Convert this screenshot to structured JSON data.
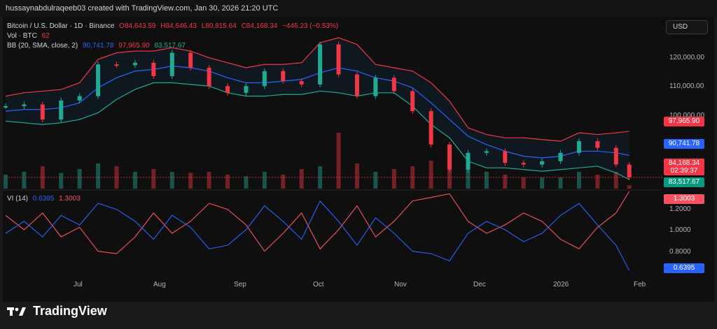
{
  "header": {
    "credit": "hussaynabdulraqeeb03 created with TradingView.com, Jan 30, 2026 21:20 UTC"
  },
  "toolbar": {
    "currency": "USD"
  },
  "legend": {
    "symbol": "Bitcoin / U.S. Dollar · 1D · Binance",
    "open": "O84,643.59",
    "high": "H84,646.43",
    "low": "L80,815.64",
    "close": "C84,168.34",
    "change": "−446.23 (−0.53%)",
    "vol_label": "Vol · BTC",
    "vol_value": "62",
    "bb_label": "BB (20, SMA, close, 2)",
    "bb_basis": "90,741.78",
    "bb_upper": "97,965.90",
    "bb_lower": "83,517.67",
    "vi_label": "VI (14)",
    "vi_plus": "0.6395",
    "vi_minus": "1.3003"
  },
  "price_tags": {
    "upper": "97,965.90",
    "basis": "90,741.78",
    "last": "84,168.34",
    "countdown": "02:39:37",
    "lower": "83,517.67",
    "vi_minus": "1.3003",
    "vi_plus": "0.6395"
  },
  "colors": {
    "up": "#22ab94",
    "down": "#f23645",
    "basis": "#2962ff",
    "band": "#f23645",
    "lower_band": "#22ab94",
    "vi_plus": "#2962ff",
    "vi_minus": "#f7525f"
  },
  "brand": {
    "name": "TradingView"
  },
  "chart_data": {
    "type": "line",
    "title": "Bitcoin / U.S. Dollar · 1D · Binance",
    "price_axis": {
      "ticks": [
        "120,000.00",
        "110,000.00",
        "100,000.00"
      ],
      "ylim": [
        81000,
        126000
      ]
    },
    "vi_axis": {
      "ticks": [
        "1.2000",
        "1.0000",
        "0.8000"
      ],
      "ylim": [
        0.6,
        1.3
      ]
    },
    "x_ticks": [
      "Jul",
      "Aug",
      "Sep",
      "Oct",
      "Nov",
      "Dec",
      "2026",
      "Feb"
    ],
    "x_range": [
      "2025-06-08",
      "2026-02-02"
    ],
    "price_series": [
      {
        "date": "2025-06-08",
        "close": 105500
      },
      {
        "date": "2025-06-15",
        "close": 106000
      },
      {
        "date": "2025-06-22",
        "close": 101500
      },
      {
        "date": "2025-06-29",
        "close": 107200
      },
      {
        "date": "2025-07-06",
        "close": 108500
      },
      {
        "date": "2025-07-13",
        "close": 118000
      },
      {
        "date": "2025-07-20",
        "close": 117800
      },
      {
        "date": "2025-07-27",
        "close": 118500
      },
      {
        "date": "2025-08-03",
        "close": 114500
      },
      {
        "date": "2025-08-10",
        "close": 121500
      },
      {
        "date": "2025-08-17",
        "close": 117000
      },
      {
        "date": "2025-08-24",
        "close": 111500
      },
      {
        "date": "2025-08-31",
        "close": 109500
      },
      {
        "date": "2025-09-07",
        "close": 111500
      },
      {
        "date": "2025-09-14",
        "close": 116000
      },
      {
        "date": "2025-09-21",
        "close": 113000
      },
      {
        "date": "2025-09-28",
        "close": 112000
      },
      {
        "date": "2025-10-05",
        "close": 124000
      },
      {
        "date": "2025-10-12",
        "close": 115000
      },
      {
        "date": "2025-10-19",
        "close": 108500
      },
      {
        "date": "2025-10-26",
        "close": 114000
      },
      {
        "date": "2025-11-02",
        "close": 110000
      },
      {
        "date": "2025-11-09",
        "close": 104000
      },
      {
        "date": "2025-11-16",
        "close": 94000
      },
      {
        "date": "2025-11-23",
        "close": 86500
      },
      {
        "date": "2025-11-30",
        "close": 91500
      },
      {
        "date": "2025-12-07",
        "close": 92000
      },
      {
        "date": "2025-12-14",
        "close": 88500
      },
      {
        "date": "2025-12-21",
        "close": 88000
      },
      {
        "date": "2025-12-28",
        "close": 89000
      },
      {
        "date": "2026-01-04",
        "close": 91500
      },
      {
        "date": "2026-01-11",
        "close": 95000
      },
      {
        "date": "2026-01-18",
        "close": 93000
      },
      {
        "date": "2026-01-25",
        "close": 88000
      },
      {
        "date": "2026-01-30",
        "close": 84168
      }
    ],
    "bollinger_upper": [
      108500,
      109500,
      110000,
      110500,
      112500,
      119500,
      121500,
      122000,
      122000,
      123000,
      122000,
      120000,
      118500,
      117000,
      118000,
      118000,
      118500,
      124500,
      126000,
      124000,
      118000,
      117000,
      116000,
      112500,
      107000,
      99000,
      97000,
      96000,
      96000,
      95500,
      95000,
      97500,
      97000,
      97500,
      97966
    ],
    "bollinger_basis": [
      104000,
      104500,
      104500,
      105000,
      106500,
      111000,
      114000,
      116000,
      116500,
      117500,
      117000,
      116000,
      114000,
      112500,
      112500,
      113000,
      113500,
      115500,
      117000,
      116000,
      114000,
      113000,
      111000,
      106500,
      101500,
      96500,
      94000,
      92000,
      90500,
      90000,
      90500,
      92000,
      92000,
      91500,
      90742
    ],
    "bollinger_lower": [
      101000,
      100500,
      100000,
      100500,
      101500,
      103500,
      107500,
      110500,
      112500,
      112500,
      112000,
      111500,
      109500,
      108500,
      108500,
      109000,
      109000,
      110000,
      109500,
      108500,
      109500,
      109500,
      105500,
      100000,
      96000,
      89000,
      87000,
      87000,
      86500,
      86000,
      86500,
      87000,
      87500,
      85500,
      83518
    ],
    "volume_relative": [
      0.25,
      0.3,
      0.4,
      0.28,
      0.35,
      0.45,
      0.4,
      0.3,
      0.35,
      0.3,
      0.28,
      0.3,
      0.25,
      0.22,
      0.3,
      0.25,
      0.35,
      0.4,
      1.0,
      0.45,
      0.3,
      0.35,
      0.4,
      0.5,
      0.7,
      0.4,
      0.3,
      0.25,
      0.2,
      0.2,
      0.2,
      0.3,
      0.25,
      0.3,
      0.06
    ],
    "vi_plus": [
      0.95,
      1.05,
      0.92,
      1.1,
      1.02,
      1.2,
      1.15,
      1.05,
      0.9,
      1.1,
      1.0,
      0.82,
      0.85,
      0.98,
      1.18,
      1.05,
      0.9,
      1.22,
      1.05,
      0.85,
      1.08,
      0.95,
      0.8,
      0.78,
      0.72,
      0.95,
      1.05,
      0.98,
      0.88,
      0.95,
      1.1,
      1.2,
      1.02,
      0.85,
      0.64
    ],
    "vi_minus": [
      1.1,
      0.98,
      1.12,
      0.92,
      1.0,
      0.8,
      0.78,
      0.92,
      1.12,
      0.95,
      1.05,
      1.2,
      1.15,
      1.02,
      0.8,
      0.95,
      1.12,
      0.82,
      0.98,
      1.18,
      0.92,
      1.05,
      1.22,
      1.25,
      1.28,
      1.05,
      0.95,
      1.02,
      1.12,
      1.05,
      0.9,
      0.82,
      1.0,
      1.12,
      1.3
    ]
  }
}
